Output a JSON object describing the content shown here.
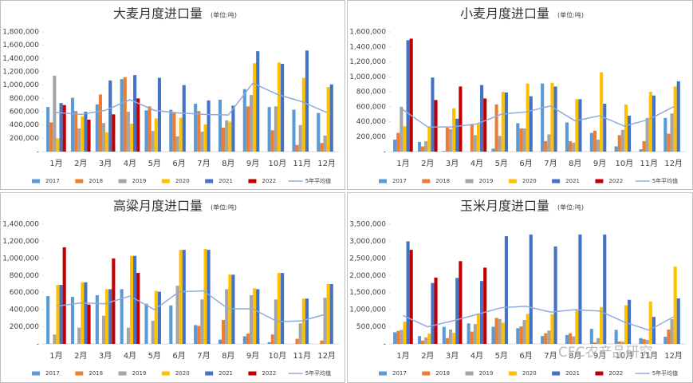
{
  "chart_data": [
    {
      "type": "bar",
      "title": "大麦月度进口量",
      "unit": "(单位:吨)",
      "categories": [
        "1月",
        "2月",
        "3月",
        "4月",
        "5月",
        "6月",
        "7月",
        "8月",
        "9月",
        "10月",
        "11月",
        "12月"
      ],
      "ylim": [
        0,
        1800000
      ],
      "yticks": [
        {
          "value": 0,
          "label": "-"
        },
        {
          "value": 200000,
          "label": "200,000"
        },
        {
          "value": 400000,
          "label": "400,000"
        },
        {
          "value": 600000,
          "label": "600,000"
        },
        {
          "value": 800000,
          "label": "800,000"
        },
        {
          "value": 1000000,
          "label": "1,000,000"
        },
        {
          "value": 1200000,
          "label": "1,200,000"
        },
        {
          "value": 1400000,
          "label": "1,400,000"
        },
        {
          "value": 1600000,
          "label": "1,600,000"
        },
        {
          "value": 1800000,
          "label": "1,800,000"
        }
      ],
      "series": [
        {
          "name": "2017",
          "color": "#5b9bd5",
          "values": [
            670000,
            810000,
            710000,
            1090000,
            620000,
            630000,
            720000,
            780000,
            940000,
            670000,
            630000,
            580000
          ]
        },
        {
          "name": "2018",
          "color": "#ed7d31",
          "values": [
            440000,
            610000,
            860000,
            1120000,
            680000,
            590000,
            610000,
            360000,
            680000,
            320000,
            100000,
            130000
          ]
        },
        {
          "name": "2019",
          "color": "#a5a5a5",
          "values": [
            1140000,
            350000,
            430000,
            600000,
            310000,
            230000,
            300000,
            470000,
            850000,
            680000,
            400000,
            240000
          ]
        },
        {
          "name": "2020",
          "color": "#ffc000",
          "values": [
            200000,
            530000,
            290000,
            420000,
            500000,
            510000,
            410000,
            450000,
            1330000,
            1340000,
            1110000,
            970000
          ]
        },
        {
          "name": "2021",
          "color": "#4472c4",
          "values": [
            730000,
            600000,
            1070000,
            1150000,
            1110000,
            1000000,
            770000,
            690000,
            1510000,
            1320000,
            1520000,
            1010000
          ]
        },
        {
          "name": "2022",
          "color": "#c00000",
          "values": [
            700000,
            480000,
            560000,
            800000,
            null,
            null,
            null,
            null,
            null,
            null,
            null,
            null
          ]
        },
        {
          "name": "5年平均值",
          "type": "line",
          "color": "#8faadc",
          "values": [
            590000,
            560000,
            620000,
            780000,
            620000,
            580000,
            560000,
            550000,
            1030000,
            860000,
            750000,
            590000
          ]
        }
      ]
    },
    {
      "type": "bar",
      "title": "小麦月度进口量",
      "unit": "(单位:吨)",
      "categories": [
        "1月",
        "2月",
        "3月",
        "4月",
        "5月",
        "6月",
        "7月",
        "8月",
        "9月",
        "10月",
        "11月",
        "12月"
      ],
      "ylim": [
        0,
        1600000
      ],
      "yticks": [
        {
          "value": 0,
          "label": "-"
        },
        {
          "value": 200000,
          "label": "200,000"
        },
        {
          "value": 400000,
          "label": "400,000"
        },
        {
          "value": 600000,
          "label": "600,000"
        },
        {
          "value": 800000,
          "label": "800,000"
        },
        {
          "value": 1000000,
          "label": "1,000,000"
        },
        {
          "value": 1200000,
          "label": "1,200,000"
        },
        {
          "value": 1400000,
          "label": "1,400,000"
        },
        {
          "value": 1600000,
          "label": "1,600,000"
        }
      ],
      "series": [
        {
          "name": "2017",
          "color": "#5b9bd5",
          "values": [
            160000,
            130000,
            10000,
            0,
            40000,
            380000,
            910000,
            390000,
            250000,
            70000,
            30000,
            450000
          ]
        },
        {
          "name": "2018",
          "color": "#ed7d31",
          "values": [
            250000,
            70000,
            320000,
            370000,
            630000,
            310000,
            140000,
            140000,
            280000,
            220000,
            140000,
            240000
          ]
        },
        {
          "name": "2019",
          "color": "#a5a5a5",
          "values": [
            600000,
            140000,
            300000,
            220000,
            210000,
            310000,
            230000,
            120000,
            160000,
            290000,
            450000,
            510000
          ]
        },
        {
          "name": "2020",
          "color": "#ffc000",
          "values": [
            340000,
            330000,
            580000,
            370000,
            800000,
            910000,
            920000,
            700000,
            1060000,
            630000,
            800000,
            870000
          ]
        },
        {
          "name": "2021",
          "color": "#4472c4",
          "values": [
            1490000,
            990000,
            440000,
            890000,
            790000,
            740000,
            870000,
            700000,
            640000,
            480000,
            750000,
            940000
          ]
        },
        {
          "name": "2022",
          "color": "#c00000",
          "values": [
            1510000,
            690000,
            870000,
            710000,
            null,
            null,
            null,
            null,
            null,
            null,
            null,
            null
          ]
        },
        {
          "name": "5年平均值",
          "type": "line",
          "color": "#8faadc",
          "values": [
            560000,
            330000,
            330000,
            370000,
            500000,
            530000,
            610000,
            410000,
            480000,
            340000,
            430000,
            600000
          ]
        }
      ]
    },
    {
      "type": "bar",
      "title": "高粱月度进口量",
      "unit": "(单位:吨)",
      "categories": [
        "1月",
        "2月",
        "3月",
        "4月",
        "5月",
        "6月",
        "7月",
        "8月",
        "9月",
        "10月",
        "11月",
        "12月"
      ],
      "ylim": [
        0,
        1400000
      ],
      "yticks": [
        {
          "value": 0,
          "label": "-"
        },
        {
          "value": 200000,
          "label": "200,000"
        },
        {
          "value": 400000,
          "label": "400,000"
        },
        {
          "value": 600000,
          "label": "600,000"
        },
        {
          "value": 800000,
          "label": "800,000"
        },
        {
          "value": 1000000,
          "label": "1,000,000"
        },
        {
          "value": 1200000,
          "label": "1,200,000"
        },
        {
          "value": 1400000,
          "label": "1,400,000"
        }
      ],
      "series": [
        {
          "name": "2017",
          "color": "#5b9bd5",
          "values": [
            560000,
            550000,
            570000,
            640000,
            470000,
            450000,
            220000,
            50000,
            90000,
            20000,
            0,
            0
          ]
        },
        {
          "name": "2018",
          "color": "#ed7d31",
          "values": [
            0,
            0,
            0,
            0,
            0,
            0,
            210000,
            280000,
            120000,
            110000,
            60000,
            40000
          ]
        },
        {
          "name": "2019",
          "color": "#a5a5a5",
          "values": [
            110000,
            190000,
            330000,
            190000,
            270000,
            680000,
            520000,
            640000,
            570000,
            520000,
            240000,
            540000
          ]
        },
        {
          "name": "2020",
          "color": "#ffc000",
          "values": [
            690000,
            720000,
            640000,
            1030000,
            620000,
            1100000,
            1110000,
            810000,
            650000,
            830000,
            530000,
            700000
          ]
        },
        {
          "name": "2021",
          "color": "#4472c4",
          "values": [
            690000,
            720000,
            640000,
            1030000,
            610000,
            1100000,
            1100000,
            810000,
            640000,
            830000,
            530000,
            700000
          ]
        },
        {
          "name": "2022",
          "color": "#c00000",
          "values": [
            1130000,
            460000,
            1000000,
            830000,
            null,
            null,
            null,
            null,
            null,
            null,
            null,
            null
          ]
        },
        {
          "name": "5年平均值",
          "type": "line",
          "color": "#8faadc",
          "values": [
            440000,
            480000,
            470000,
            560000,
            400000,
            610000,
            620000,
            410000,
            410000,
            260000,
            270000,
            350000
          ]
        }
      ]
    },
    {
      "type": "bar",
      "title": "玉米月度进口量",
      "unit": "(单位:吨)",
      "categories": [
        "1月",
        "2月",
        "3月",
        "4月",
        "5月",
        "6月",
        "7月",
        "8月",
        "9月",
        "10月",
        "11月",
        "12月"
      ],
      "ylim": [
        0,
        3500000
      ],
      "yticks": [
        {
          "value": 0,
          "label": "-"
        },
        {
          "value": 500000,
          "label": "500,000"
        },
        {
          "value": 1000000,
          "label": "1,000,000"
        },
        {
          "value": 1500000,
          "label": "1,500,000"
        },
        {
          "value": 2000000,
          "label": "2,000,000"
        },
        {
          "value": 2500000,
          "label": "2,500,000"
        },
        {
          "value": 3000000,
          "label": "3,000,000"
        },
        {
          "value": 3500000,
          "label": "3,500,000"
        }
      ],
      "series": [
        {
          "name": "2017",
          "color": "#5b9bd5",
          "values": [
            340000,
            230000,
            500000,
            600000,
            500000,
            460000,
            230000,
            260000,
            440000,
            410000,
            170000,
            210000
          ]
        },
        {
          "name": "2018",
          "color": "#ed7d31",
          "values": [
            380000,
            100000,
            170000,
            360000,
            760000,
            510000,
            310000,
            310000,
            40000,
            70000,
            140000,
            420000
          ]
        },
        {
          "name": "2019",
          "color": "#a5a5a5",
          "values": [
            410000,
            190000,
            420000,
            580000,
            730000,
            700000,
            390000,
            220000,
            170000,
            60000,
            120000,
            720000
          ]
        },
        {
          "name": "2020",
          "color": "#ffc000",
          "values": [
            650000,
            300000,
            320000,
            880000,
            620000,
            880000,
            870000,
            1000000,
            1080000,
            1130000,
            1240000,
            2260000
          ]
        },
        {
          "name": "2021",
          "color": "#4472c4",
          "values": [
            3000000,
            1780000,
            1930000,
            1840000,
            3150000,
            3200000,
            2850000,
            3200000,
            3200000,
            1290000,
            790000,
            1330000
          ]
        },
        {
          "name": "2022",
          "color": "#c00000",
          "values": [
            2750000,
            1940000,
            2420000,
            2230000,
            null,
            null,
            null,
            null,
            null,
            null,
            null,
            null
          ]
        },
        {
          "name": "5年平均值",
          "type": "line",
          "color": "#8faadc",
          "values": [
            830000,
            500000,
            670000,
            860000,
            1060000,
            1100000,
            930000,
            1000000,
            960000,
            640000,
            400000,
            790000
          ]
        }
      ]
    }
  ],
  "watermark": "CFC农产品研究"
}
